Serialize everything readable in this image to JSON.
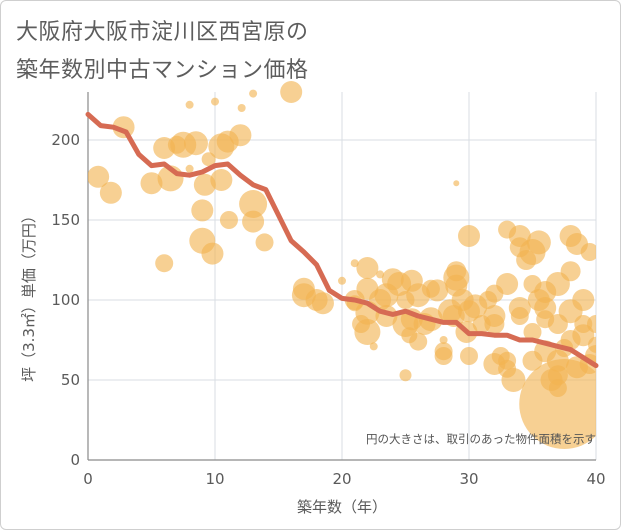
{
  "titles": [
    "大阪府大阪市淀川区西宮原の",
    "築年数別中古マンション価格"
  ],
  "chart_data": {
    "type": "scatter",
    "title": "大阪府大阪市淀川区西宮原の築年数別中古マンション価格",
    "xlabel": "築年数（年）",
    "ylabel": "坪（3.3㎡）単価（万円）",
    "xlim": [
      0,
      40
    ],
    "ylim": [
      0,
      230
    ],
    "xticks": [
      "0",
      "10",
      "20",
      "30",
      "40"
    ],
    "yticks": [
      "0",
      "50",
      "100",
      "150",
      "200"
    ],
    "grid": true,
    "note": "円の大きさは、取引のあった物件面積を示す",
    "colors": {
      "bubble": "#f2b350",
      "line": "#d66b53",
      "grid": "#d9dde3",
      "text": "#5a5a5a"
    },
    "trend_line": {
      "x": [
        0,
        1,
        2,
        3,
        4,
        5,
        6,
        7,
        8,
        9,
        10,
        11,
        12,
        13,
        14,
        15,
        16,
        17,
        18,
        19,
        20,
        21,
        22,
        23,
        24,
        25,
        26,
        27,
        28,
        29,
        30,
        31,
        32,
        33,
        34,
        35,
        36,
        37,
        38,
        39,
        40
      ],
      "y": [
        216,
        209,
        208,
        205,
        191,
        184,
        185,
        179,
        178,
        180,
        184,
        185,
        178,
        172,
        169,
        153,
        137,
        130,
        122,
        106,
        101,
        100,
        98,
        93,
        91,
        93,
        90,
        88,
        86,
        86,
        79,
        79,
        78,
        78,
        75,
        75,
        73,
        71,
        69,
        64,
        59
      ]
    },
    "bubbles": [
      {
        "x": 0.8,
        "y": 177,
        "r": 11
      },
      {
        "x": 1.8,
        "y": 167,
        "r": 11
      },
      {
        "x": 2.8,
        "y": 208,
        "r": 11
      },
      {
        "x": 5,
        "y": 173,
        "r": 11
      },
      {
        "x": 6,
        "y": 195,
        "r": 11
      },
      {
        "x": 6,
        "y": 123,
        "r": 9
      },
      {
        "x": 6.5,
        "y": 176,
        "r": 13
      },
      {
        "x": 7,
        "y": 197,
        "r": 9
      },
      {
        "x": 7.5,
        "y": 197,
        "r": 13
      },
      {
        "x": 8,
        "y": 182,
        "r": 4
      },
      {
        "x": 8,
        "y": 222,
        "r": 4
      },
      {
        "x": 8.5,
        "y": 198,
        "r": 12
      },
      {
        "x": 9,
        "y": 156,
        "r": 11
      },
      {
        "x": 9,
        "y": 137,
        "r": 13
      },
      {
        "x": 9.2,
        "y": 172,
        "r": 11
      },
      {
        "x": 9.5,
        "y": 188,
        "r": 7
      },
      {
        "x": 9.8,
        "y": 129,
        "r": 11
      },
      {
        "x": 10,
        "y": 224,
        "r": 4
      },
      {
        "x": 10.5,
        "y": 196,
        "r": 13
      },
      {
        "x": 10.5,
        "y": 175,
        "r": 11
      },
      {
        "x": 11,
        "y": 199,
        "r": 11
      },
      {
        "x": 11.1,
        "y": 150,
        "r": 9
      },
      {
        "x": 12,
        "y": 203,
        "r": 11
      },
      {
        "x": 12.1,
        "y": 220,
        "r": 4
      },
      {
        "x": 13,
        "y": 229,
        "r": 4
      },
      {
        "x": 13,
        "y": 160,
        "r": 14
      },
      {
        "x": 13,
        "y": 149,
        "r": 11
      },
      {
        "x": 13.9,
        "y": 136,
        "r": 9
      },
      {
        "x": 16,
        "y": 230,
        "r": 11
      },
      {
        "x": 17,
        "y": 107,
        "r": 11
      },
      {
        "x": 17,
        "y": 103,
        "r": 12
      },
      {
        "x": 18,
        "y": 100,
        "r": 11
      },
      {
        "x": 18.5,
        "y": 98,
        "r": 11
      },
      {
        "x": 20,
        "y": 112,
        "r": 4
      },
      {
        "x": 21,
        "y": 123,
        "r": 4
      },
      {
        "x": 21,
        "y": 98,
        "r": 8
      },
      {
        "x": 21,
        "y": 100,
        "r": 10
      },
      {
        "x": 21.5,
        "y": 85,
        "r": 9
      },
      {
        "x": 22,
        "y": 120,
        "r": 11
      },
      {
        "x": 22,
        "y": 107,
        "r": 11
      },
      {
        "x": 22,
        "y": 92,
        "r": 12
      },
      {
        "x": 22,
        "y": 80,
        "r": 13
      },
      {
        "x": 22.5,
        "y": 71,
        "r": 4
      },
      {
        "x": 23,
        "y": 116,
        "r": 4
      },
      {
        "x": 23,
        "y": 100,
        "r": 11
      },
      {
        "x": 23.5,
        "y": 103,
        "r": 12
      },
      {
        "x": 23.5,
        "y": 90,
        "r": 11
      },
      {
        "x": 24,
        "y": 113,
        "r": 11
      },
      {
        "x": 24.5,
        "y": 110,
        "r": 12
      },
      {
        "x": 25,
        "y": 100,
        "r": 9
      },
      {
        "x": 25,
        "y": 85,
        "r": 13
      },
      {
        "x": 25,
        "y": 53,
        "r": 6
      },
      {
        "x": 25.3,
        "y": 78,
        "r": 8
      },
      {
        "x": 25.5,
        "y": 112,
        "r": 11
      },
      {
        "x": 25.5,
        "y": 88,
        "r": 11
      },
      {
        "x": 26,
        "y": 103,
        "r": 12
      },
      {
        "x": 26,
        "y": 74,
        "r": 9
      },
      {
        "x": 26.5,
        "y": 85,
        "r": 11
      },
      {
        "x": 27,
        "y": 107,
        "r": 9
      },
      {
        "x": 27,
        "y": 88,
        "r": 12
      },
      {
        "x": 27.5,
        "y": 106,
        "r": 11
      },
      {
        "x": 28,
        "y": 75,
        "r": 4
      },
      {
        "x": 28,
        "y": 65,
        "r": 9
      },
      {
        "x": 28,
        "y": 68,
        "r": 9
      },
      {
        "x": 28.5,
        "y": 93,
        "r": 12
      },
      {
        "x": 28.8,
        "y": 90,
        "r": 11
      },
      {
        "x": 29,
        "y": 118,
        "r": 10
      },
      {
        "x": 29,
        "y": 173,
        "r": 3
      },
      {
        "x": 29,
        "y": 109,
        "r": 11
      },
      {
        "x": 29,
        "y": 114,
        "r": 13
      },
      {
        "x": 29.5,
        "y": 100,
        "r": 11
      },
      {
        "x": 29.8,
        "y": 80,
        "r": 11
      },
      {
        "x": 30,
        "y": 140,
        "r": 11
      },
      {
        "x": 30,
        "y": 93,
        "r": 11
      },
      {
        "x": 30,
        "y": 65,
        "r": 9
      },
      {
        "x": 30.5,
        "y": 96,
        "r": 12
      },
      {
        "x": 31,
        "y": 85,
        "r": 9
      },
      {
        "x": 31.5,
        "y": 100,
        "r": 9
      },
      {
        "x": 32,
        "y": 104,
        "r": 9
      },
      {
        "x": 32,
        "y": 90,
        "r": 11
      },
      {
        "x": 32,
        "y": 85,
        "r": 10
      },
      {
        "x": 32,
        "y": 60,
        "r": 11
      },
      {
        "x": 32.5,
        "y": 65,
        "r": 9
      },
      {
        "x": 33,
        "y": 110,
        "r": 11
      },
      {
        "x": 33,
        "y": 144,
        "r": 9
      },
      {
        "x": 33,
        "y": 62,
        "r": 9
      },
      {
        "x": 33,
        "y": 57,
        "r": 9
      },
      {
        "x": 33.5,
        "y": 50,
        "r": 12
      },
      {
        "x": 34,
        "y": 133,
        "r": 10
      },
      {
        "x": 34,
        "y": 95,
        "r": 11
      },
      {
        "x": 34,
        "y": 90,
        "r": 9
      },
      {
        "x": 34,
        "y": 140,
        "r": 11
      },
      {
        "x": 34.5,
        "y": 125,
        "r": 10
      },
      {
        "x": 35,
        "y": 130,
        "r": 13
      },
      {
        "x": 35,
        "y": 110,
        "r": 9
      },
      {
        "x": 35,
        "y": 80,
        "r": 9
      },
      {
        "x": 35,
        "y": 62,
        "r": 10
      },
      {
        "x": 35.5,
        "y": 136,
        "r": 12
      },
      {
        "x": 35.5,
        "y": 100,
        "r": 11
      },
      {
        "x": 36,
        "y": 105,
        "r": 11
      },
      {
        "x": 36,
        "y": 95,
        "r": 11
      },
      {
        "x": 36,
        "y": 88,
        "r": 9
      },
      {
        "x": 36,
        "y": 68,
        "r": 11
      },
      {
        "x": 36.5,
        "y": 50,
        "r": 11
      },
      {
        "x": 37,
        "y": 110,
        "r": 12
      },
      {
        "x": 37,
        "y": 85,
        "r": 10
      },
      {
        "x": 37,
        "y": 62,
        "r": 11
      },
      {
        "x": 37,
        "y": 53,
        "r": 10
      },
      {
        "x": 37,
        "y": 45,
        "r": 9
      },
      {
        "x": 37.5,
        "y": 70,
        "r": 9
      },
      {
        "x": 37.5,
        "y": 35,
        "r": 45
      },
      {
        "x": 38,
        "y": 118,
        "r": 10
      },
      {
        "x": 38,
        "y": 93,
        "r": 12
      },
      {
        "x": 38,
        "y": 140,
        "r": 11
      },
      {
        "x": 38,
        "y": 75,
        "r": 10
      },
      {
        "x": 38.5,
        "y": 135,
        "r": 11
      },
      {
        "x": 38.5,
        "y": 58,
        "r": 11
      },
      {
        "x": 39,
        "y": 100,
        "r": 11
      },
      {
        "x": 39,
        "y": 85,
        "r": 9
      },
      {
        "x": 39,
        "y": 78,
        "r": 11
      },
      {
        "x": 39.5,
        "y": 130,
        "r": 9
      },
      {
        "x": 39.5,
        "y": 60,
        "r": 10
      },
      {
        "x": 40,
        "y": 85,
        "r": 9
      },
      {
        "x": 40,
        "y": 72,
        "r": 8
      },
      {
        "x": 40,
        "y": 65,
        "r": 11
      }
    ]
  }
}
